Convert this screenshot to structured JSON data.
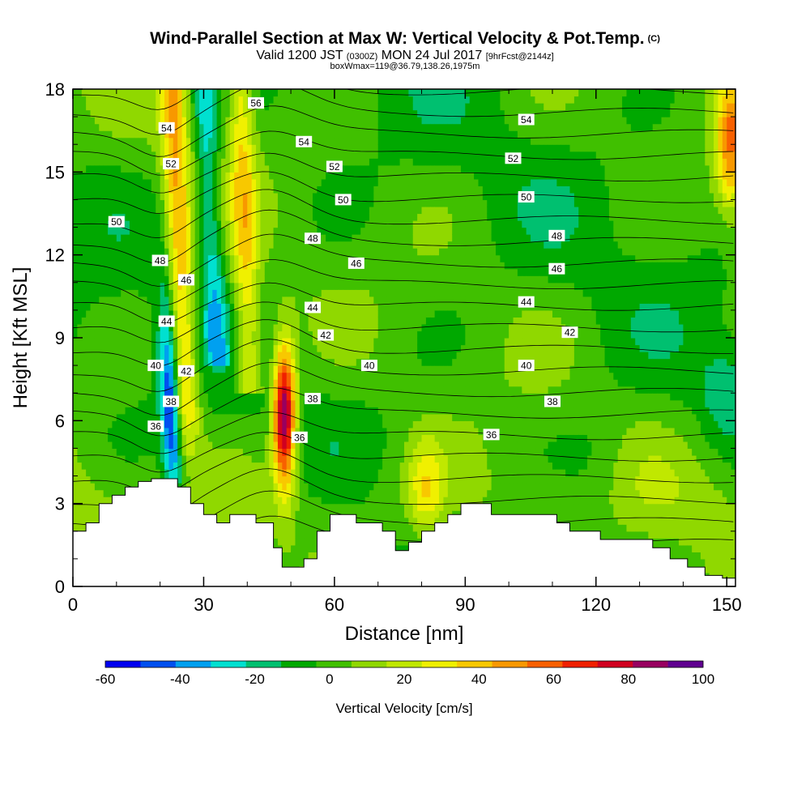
{
  "header": {
    "title": "Wind-Parallel Section at Max W: Vertical Velocity & Pot.Temp.",
    "title_c": "(C)",
    "valid_a": "Valid 1200 JST",
    "valid_b": "(0300Z)",
    "valid_c": "MON 24 Jul 2017",
    "valid_d": "[9hrFcst@2144z]",
    "box": "boxWmax=119@36.79,138.26,1975m"
  },
  "chart_data": {
    "type": "heatmap",
    "title": "Wind-Parallel Section at Max W: Vertical Velocity & Pot.Temp.",
    "xlabel": "Distance [nm]",
    "ylabel": "Height [Kft MSL]",
    "xlim": [
      0,
      152
    ],
    "ylim": [
      0,
      18
    ],
    "xticks": [
      0,
      30,
      60,
      90,
      120,
      150
    ],
    "yticks": [
      0,
      3,
      6,
      9,
      12,
      15,
      18
    ],
    "colorbar": {
      "title": "Vertical Velocity [cm/s]",
      "levels": [
        -60,
        -50,
        -40,
        -30,
        -20,
        -10,
        0,
        10,
        20,
        30,
        40,
        50,
        60,
        70,
        80,
        90,
        100
      ],
      "tick_labels": [
        "-60",
        "-40",
        "-20",
        "0",
        "20",
        "40",
        "60",
        "80",
        "100"
      ],
      "colors": [
        "#0000f0",
        "#0050f0",
        "#00a0f0",
        "#00e0d0",
        "#00c070",
        "#00a800",
        "#40c000",
        "#90d800",
        "#c0e800",
        "#f0f000",
        "#f8c800",
        "#f89800",
        "#f86000",
        "#f02000",
        "#d00020",
        "#980060",
        "#600090"
      ]
    },
    "w_features": [
      {
        "kind": "updraft",
        "x": 48,
        "z": 6.5,
        "w_max": 100
      },
      {
        "kind": "updraft",
        "x": 28,
        "z": 12,
        "w_max": 45
      },
      {
        "kind": "updraft",
        "x": 81,
        "z": 3.5,
        "w_max": 35
      },
      {
        "kind": "updraft",
        "x": 151,
        "z": 16,
        "w_max": 55
      },
      {
        "kind": "downdraft",
        "x": 22,
        "z": 6,
        "w_min": -50
      },
      {
        "kind": "downdraft",
        "x": 33,
        "z": 12,
        "w_min": -25
      },
      {
        "kind": "downdraft",
        "x": 150,
        "z": 7,
        "w_min": -15
      }
    ],
    "terrain": {
      "x": [
        0,
        3,
        6,
        9,
        12,
        15,
        18,
        21,
        24,
        27,
        30,
        33,
        36,
        39,
        42,
        45,
        46,
        48,
        50,
        53,
        56,
        59,
        62,
        65,
        68,
        71,
        74,
        77,
        80,
        83,
        86,
        89,
        92,
        96,
        100,
        104,
        108,
        111,
        114,
        117,
        121,
        125,
        129,
        133,
        137,
        141,
        145,
        149,
        152
      ],
      "z": [
        2,
        2.3,
        3,
        3.3,
        3.6,
        3.8,
        3.9,
        3.9,
        3.6,
        3,
        2.6,
        2.3,
        2.6,
        2.6,
        2.3,
        2.3,
        1.4,
        0.7,
        0.7,
        1,
        2,
        2.6,
        2.6,
        2.3,
        2.3,
        2.0,
        1.3,
        1.6,
        2,
        2.3,
        2.6,
        3.0,
        3.0,
        2.6,
        2.6,
        2.6,
        2.6,
        2.3,
        2.0,
        2.0,
        1.7,
        1.7,
        1.7,
        1.4,
        1.0,
        0.7,
        0.4,
        0.3,
        0.3
      ]
    },
    "theta_labels": [
      {
        "text": "56",
        "x": 42,
        "z": 17.5
      },
      {
        "text": "54",
        "x": 21.5,
        "z": 16.6
      },
      {
        "text": "54",
        "x": 53,
        "z": 16.1
      },
      {
        "text": "54",
        "x": 104,
        "z": 16.9
      },
      {
        "text": "52",
        "x": 22.5,
        "z": 15.3
      },
      {
        "text": "52",
        "x": 60,
        "z": 15.2
      },
      {
        "text": "52",
        "x": 101,
        "z": 15.5
      },
      {
        "text": "50",
        "x": 10,
        "z": 13.2
      },
      {
        "text": "50",
        "x": 62,
        "z": 14.0
      },
      {
        "text": "50",
        "x": 104,
        "z": 14.1
      },
      {
        "text": "48",
        "x": 20,
        "z": 11.8
      },
      {
        "text": "48",
        "x": 55,
        "z": 12.6
      },
      {
        "text": "48",
        "x": 111,
        "z": 12.7
      },
      {
        "text": "46",
        "x": 26,
        "z": 11.1
      },
      {
        "text": "46",
        "x": 65,
        "z": 11.7
      },
      {
        "text": "46",
        "x": 111,
        "z": 11.5
      },
      {
        "text": "44",
        "x": 21.5,
        "z": 9.6
      },
      {
        "text": "44",
        "x": 55,
        "z": 10.1
      },
      {
        "text": "44",
        "x": 104,
        "z": 10.3
      },
      {
        "text": "42",
        "x": 58,
        "z": 9.1
      },
      {
        "text": "42",
        "x": 114,
        "z": 9.2
      },
      {
        "text": "42",
        "x": 26,
        "z": 7.8
      },
      {
        "text": "40",
        "x": 19,
        "z": 8.0
      },
      {
        "text": "40",
        "x": 68,
        "z": 8.0
      },
      {
        "text": "40",
        "x": 104,
        "z": 8.0
      },
      {
        "text": "38",
        "x": 55,
        "z": 6.8
      },
      {
        "text": "38",
        "x": 110,
        "z": 6.7
      },
      {
        "text": "38",
        "x": 22.5,
        "z": 6.7
      },
      {
        "text": "36",
        "x": 19,
        "z": 5.8
      },
      {
        "text": "36",
        "x": 52,
        "z": 5.4
      },
      {
        "text": "36",
        "x": 96,
        "z": 5.5
      }
    ]
  }
}
